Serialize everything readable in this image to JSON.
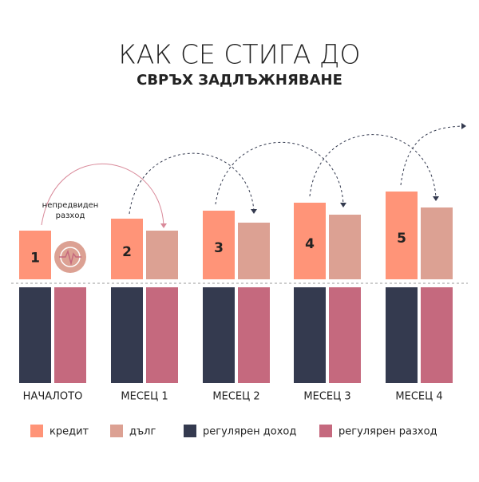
{
  "chart_data": {
    "type": "bar",
    "title": "КАК СЕ СТИГА ДО",
    "subtitle": "СВРЪХ ЗАДЛЪЖНЯВАНЕ",
    "annotation": [
      "непредвиден",
      "разход"
    ],
    "categories": [
      "НАЧАЛОТО",
      "МЕСЕЦ 1",
      "МЕСЕЦ 2",
      "МЕСЕЦ 3",
      "МЕСЕЦ 4"
    ],
    "steps": [
      1,
      2,
      3,
      4,
      5
    ],
    "series": [
      {
        "name": "кредит",
        "color": "#ff9478",
        "values": [
          61,
          76,
          86,
          96,
          110
        ]
      },
      {
        "name": "дълг",
        "color": "#dca193",
        "values": [
          null,
          61,
          71,
          81,
          90
        ]
      },
      {
        "name": "регулярен доход",
        "color": "#343a4f",
        "values": [
          120,
          120,
          120,
          120,
          120
        ]
      },
      {
        "name": "регулярен разход",
        "color": "#c5697e",
        "values": [
          120,
          120,
          120,
          120,
          120
        ]
      }
    ]
  }
}
